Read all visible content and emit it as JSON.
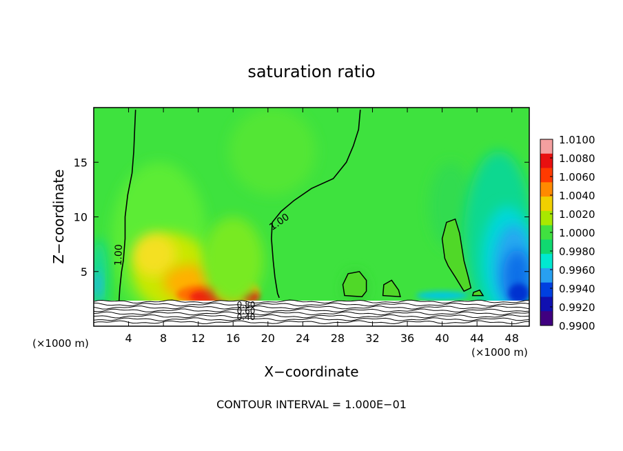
{
  "chart_data": {
    "type": "heatmap",
    "title": "saturation ratio",
    "xlabel": "X−coordinate",
    "ylabel": "Z−coordinate",
    "x_unit_left": "(×1000 m)",
    "x_unit_right": "(×1000 m)",
    "xlim": [
      0,
      50
    ],
    "ylim": [
      0,
      20
    ],
    "x_ticks": [
      4,
      8,
      12,
      16,
      20,
      24,
      28,
      32,
      36,
      40,
      44,
      48
    ],
    "y_ticks": [
      5,
      10,
      15
    ],
    "footer": "CONTOUR INTERVAL = 1.000E−01",
    "colorbar": {
      "min": 0.99,
      "max": 1.01,
      "labels": [
        "1.0100",
        "1.0080",
        "1.0060",
        "1.0040",
        "1.0020",
        "1.0000",
        "0.9980",
        "0.9960",
        "0.9940",
        "0.9920",
        "0.9900"
      ],
      "colors": [
        "#f4a0a0",
        "#e81010",
        "#ff3a00",
        "#ff8a00",
        "#f0d000",
        "#a8e800",
        "#40e040",
        "#10d870",
        "#00e8d0",
        "#28a0f0",
        "#0040e0",
        "#1010b0",
        "#400080"
      ]
    },
    "field": {
      "background": "#3ee23e",
      "blobs": [
        {
          "x": 7.5,
          "z": 8,
          "rx": 5.5,
          "rz": 7,
          "color": "#5cec34"
        },
        {
          "x": 9,
          "z": 5,
          "rx": 4.5,
          "rz": 3.5,
          "color": "#c8e800"
        },
        {
          "x": 7,
          "z": 6.5,
          "rx": 2.5,
          "rz": 2,
          "color": "#f4e020"
        },
        {
          "x": 11,
          "z": 4,
          "rx": 3,
          "rz": 1.6,
          "color": "#ffb000"
        },
        {
          "x": 13,
          "z": 2.9,
          "rx": 3.5,
          "rz": 0.9,
          "color": "#ff7000"
        },
        {
          "x": 13,
          "z": 2.7,
          "rx": 2,
          "rz": 0.6,
          "color": "#f02010"
        },
        {
          "x": 16.5,
          "z": 3.2,
          "rx": 2.5,
          "rz": 1.1,
          "color": "#ffa000"
        },
        {
          "x": 18,
          "z": 2.7,
          "rx": 1,
          "rz": 0.5,
          "color": "#e81010"
        },
        {
          "x": 16,
          "z": 6,
          "rx": 3.5,
          "rz": 4,
          "color": "#78ea20"
        },
        {
          "x": 0.6,
          "z": 4.5,
          "rx": 0.9,
          "rz": 3.5,
          "color": "#10d8a0"
        },
        {
          "x": 0.3,
          "z": 3.8,
          "rx": 0.5,
          "rz": 1.2,
          "color": "#28b0f0"
        },
        {
          "x": 41,
          "z": 11,
          "rx": 2.5,
          "rz": 4,
          "color": "#30dc50"
        },
        {
          "x": 46.5,
          "z": 8,
          "rx": 4,
          "rz": 8,
          "color": "#10d890"
        },
        {
          "x": 47.5,
          "z": 6,
          "rx": 3,
          "rz": 5,
          "color": "#00d8d8"
        },
        {
          "x": 48.2,
          "z": 5.5,
          "rx": 2.2,
          "rz": 3.8,
          "color": "#28a8f0"
        },
        {
          "x": 48.6,
          "z": 4.5,
          "rx": 1.6,
          "rz": 2.5,
          "color": "#1070e8"
        },
        {
          "x": 48.8,
          "z": 3,
          "rx": 1.2,
          "rz": 0.9,
          "color": "#0030d0"
        },
        {
          "x": 40,
          "z": 2.8,
          "rx": 3,
          "rz": 0.4,
          "color": "#00c8e0"
        },
        {
          "x": 30,
          "z": 3.5,
          "rx": 1.3,
          "rz": 1.5,
          "color": "#30d030"
        },
        {
          "x": 20.5,
          "z": 16,
          "rx": 5,
          "rz": 4,
          "color": "#52e636"
        }
      ]
    },
    "contours": [
      {
        "label": "1.00",
        "label_at": [
          3.2,
          6.5
        ],
        "label_angle": -88,
        "points": [
          [
            4.8,
            19.8
          ],
          [
            4.7,
            18
          ],
          [
            4.6,
            16
          ],
          [
            4.4,
            14
          ],
          [
            3.9,
            12
          ],
          [
            3.6,
            10
          ],
          [
            3.6,
            8
          ],
          [
            3.4,
            6
          ],
          [
            3.2,
            5
          ],
          [
            3,
            3.5
          ],
          [
            2.9,
            2.3
          ]
        ]
      },
      {
        "label": "1.00",
        "label_at": [
          21.5,
          9.3
        ],
        "label_angle": -35,
        "points": [
          [
            30.6,
            19.8
          ],
          [
            30.4,
            18
          ],
          [
            29.8,
            16.5
          ],
          [
            29,
            15
          ],
          [
            27.5,
            13.5
          ],
          [
            25,
            12.6
          ],
          [
            23,
            11.5
          ],
          [
            21.5,
            10.5
          ],
          [
            20.5,
            9.5
          ],
          [
            20.4,
            8
          ],
          [
            20.6,
            6
          ],
          [
            20.8,
            4.5
          ],
          [
            21.1,
            3
          ],
          [
            21.3,
            2.6
          ]
        ]
      }
    ],
    "closed_contours": [
      [
        [
          28.8,
          2.8
        ],
        [
          28.6,
          3.8
        ],
        [
          29.2,
          4.8
        ],
        [
          30.5,
          5
        ],
        [
          31.3,
          4.2
        ],
        [
          31.3,
          3.2
        ],
        [
          30.8,
          2.7
        ]
      ],
      [
        [
          33.2,
          2.8
        ],
        [
          33.3,
          3.8
        ],
        [
          34.2,
          4.2
        ],
        [
          35,
          3.3
        ],
        [
          35.2,
          2.7
        ]
      ],
      [
        [
          40.3,
          6.2
        ],
        [
          40,
          8
        ],
        [
          40.5,
          9.5
        ],
        [
          41.5,
          9.8
        ],
        [
          42,
          8.5
        ],
        [
          42.5,
          6
        ],
        [
          43,
          4.5
        ],
        [
          43.3,
          3.5
        ],
        [
          42.5,
          3.2
        ],
        [
          41.5,
          4.5
        ],
        [
          40.7,
          5.5
        ]
      ],
      [
        [
          43.5,
          2.8
        ],
        [
          43.6,
          3.1
        ],
        [
          44.3,
          3.3
        ],
        [
          44.7,
          2.8
        ]
      ]
    ],
    "ground_labels": [
      "0.80",
      "0.60",
      "0.40"
    ]
  }
}
